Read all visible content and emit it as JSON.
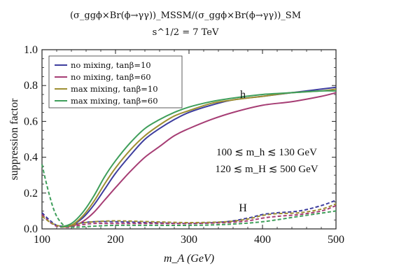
{
  "chart_data": {
    "type": "line",
    "title": "(σ_ggϕ×Br(ϕ→γγ))_MSSM/(σ_ggϕ×Br(ϕ→γγ))_SM",
    "subtitle": "s^1/2 = 7 TeV",
    "xlabel": "m_A (GeV)",
    "ylabel": "suppression factor",
    "xlim": [
      100,
      500
    ],
    "ylim": [
      0,
      1.0
    ],
    "xticks": [
      100,
      200,
      300,
      400,
      500
    ],
    "yticks": [
      0.0,
      0.2,
      0.4,
      0.6,
      0.8,
      1.0
    ],
    "ytick_labels": [
      "0.0",
      "0.2",
      "0.4",
      "0.6",
      "0.8",
      "1.0"
    ],
    "legend_position": "top-left",
    "annotations": {
      "h_label": "h",
      "H_label": "H",
      "range_mh": "100 ≲ m_h ≲ 130 GeV",
      "range_mH": "120 ≲ m_H ≲ 500 GeV"
    },
    "series": [
      {
        "name": "no mixing, tanβ=10",
        "color": "#3d3d9e",
        "h": {
          "x": [
            125,
            140,
            155,
            170,
            185,
            200,
            220,
            240,
            260,
            280,
            300,
            330,
            360,
            400,
            440,
            480,
            500
          ],
          "y": [
            0.01,
            0.02,
            0.06,
            0.13,
            0.22,
            0.31,
            0.41,
            0.5,
            0.56,
            0.61,
            0.65,
            0.69,
            0.72,
            0.74,
            0.76,
            0.78,
            0.79
          ]
        },
        "H": {
          "x": [
            100,
            110,
            120,
            130,
            140,
            150,
            170,
            200,
            250,
            300,
            350,
            380,
            400,
            420,
            450,
            480,
            500
          ],
          "y": [
            0.09,
            0.05,
            0.02,
            0.015,
            0.02,
            0.03,
            0.04,
            0.04,
            0.035,
            0.03,
            0.04,
            0.06,
            0.08,
            0.09,
            0.1,
            0.13,
            0.16
          ]
        }
      },
      {
        "name": "no mixing, tanβ=60",
        "color": "#a63d74",
        "h": {
          "x": [
            125,
            140,
            155,
            170,
            185,
            200,
            220,
            240,
            260,
            280,
            300,
            330,
            360,
            400,
            440,
            480,
            500
          ],
          "y": [
            0.01,
            0.015,
            0.04,
            0.09,
            0.16,
            0.23,
            0.32,
            0.4,
            0.46,
            0.52,
            0.56,
            0.61,
            0.65,
            0.69,
            0.71,
            0.74,
            0.76
          ]
        },
        "H": {
          "x": [
            100,
            110,
            120,
            130,
            140,
            150,
            170,
            200,
            250,
            300,
            350,
            380,
            400,
            420,
            450,
            480,
            500
          ],
          "y": [
            0.08,
            0.04,
            0.015,
            0.01,
            0.01,
            0.02,
            0.03,
            0.03,
            0.03,
            0.03,
            0.035,
            0.045,
            0.06,
            0.07,
            0.08,
            0.1,
            0.13
          ]
        }
      },
      {
        "name": "max mixing, tanβ=10",
        "color": "#9e8f32",
        "h": {
          "x": [
            125,
            140,
            155,
            170,
            185,
            200,
            220,
            240,
            260,
            280,
            300,
            330,
            360,
            400,
            440,
            480,
            500
          ],
          "y": [
            0.01,
            0.02,
            0.07,
            0.15,
            0.25,
            0.34,
            0.44,
            0.52,
            0.58,
            0.63,
            0.66,
            0.7,
            0.72,
            0.74,
            0.76,
            0.77,
            0.78
          ]
        },
        "H": {
          "x": [
            100,
            110,
            120,
            130,
            140,
            150,
            170,
            200,
            250,
            300,
            350,
            380,
            400,
            420,
            450,
            480,
            500
          ],
          "y": [
            0.07,
            0.04,
            0.02,
            0.015,
            0.02,
            0.03,
            0.04,
            0.045,
            0.04,
            0.035,
            0.04,
            0.055,
            0.075,
            0.085,
            0.09,
            0.11,
            0.14
          ]
        }
      },
      {
        "name": "max mixing, tanβ=60",
        "color": "#3e9e5a",
        "h": {
          "x": [
            125,
            140,
            155,
            170,
            185,
            200,
            220,
            240,
            260,
            280,
            300,
            330,
            360,
            400,
            440,
            480,
            500
          ],
          "y": [
            0.01,
            0.03,
            0.09,
            0.18,
            0.29,
            0.38,
            0.48,
            0.56,
            0.61,
            0.65,
            0.68,
            0.71,
            0.73,
            0.75,
            0.76,
            0.77,
            0.77
          ]
        },
        "H": {
          "x": [
            100,
            105,
            110,
            115,
            120,
            125,
            130,
            140,
            150,
            170,
            200,
            250,
            300,
            350,
            400,
            450,
            500
          ],
          "y": [
            0.36,
            0.27,
            0.19,
            0.12,
            0.07,
            0.04,
            0.02,
            0.01,
            0.01,
            0.015,
            0.02,
            0.02,
            0.02,
            0.025,
            0.04,
            0.07,
            0.1
          ]
        }
      }
    ]
  }
}
